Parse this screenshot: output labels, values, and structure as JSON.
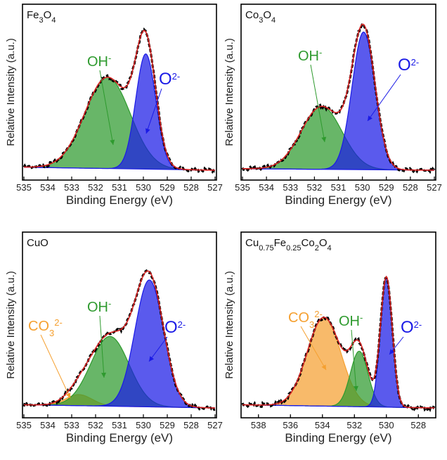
{
  "figure": {
    "panels": [
      {
        "id": "fe3o4",
        "title": {
          "base": "Fe",
          "s1": "3",
          "mid": "O",
          "s2": "4"
        },
        "xlabel": "Binding Energy (eV)",
        "ylabel": "Relative Intensity (a.u.)"
      },
      {
        "id": "co3o4",
        "title": {
          "base": "Co",
          "s1": "3",
          "mid": "O",
          "s2": "4"
        },
        "xlabel": "Binding Energy (eV)",
        "ylabel": "Relative Intensity (a.u.)"
      },
      {
        "id": "cuo",
        "title": {
          "base": "CuO"
        },
        "xlabel": "Binding Energy (eV)",
        "ylabel": "Relative Intensity (a.u.)"
      },
      {
        "id": "cufeco",
        "title": {
          "base": "Cu",
          "s1": "0.75",
          "mid": "Fe",
          "s2": "0.25",
          "mid2": "Co",
          "s3": "2",
          "end": "O",
          "s4": "4"
        },
        "xlabel": "Binding Energy (eV)",
        "ylabel": "Relative Intensity (a.u.)"
      }
    ],
    "labels": {
      "oh": {
        "base": "OH",
        "sup": "-"
      },
      "o2": {
        "base": "O",
        "sup": "2-"
      },
      "co3": {
        "base": "CO",
        "sub": "3",
        "sup": "2-"
      }
    }
  },
  "colors": {
    "oh": "#2e9a2e",
    "o2": "#1a1ae6",
    "co3": "#f5a030",
    "envelope": "#d62020",
    "data": "#000000"
  },
  "chart_data": [
    {
      "type": "line",
      "panel": "Fe3O4",
      "xlabel": "Binding Energy (eV)",
      "ylabel": "Relative Intensity (a.u.)",
      "xlim": [
        535,
        527
      ],
      "xticks": [
        535,
        534,
        533,
        532,
        531,
        530,
        529,
        528,
        527
      ],
      "ylim": [
        0,
        1.1
      ],
      "peaks": [
        {
          "name": "OH-",
          "center": 531.5,
          "height": 0.61,
          "sigma": 0.95
        },
        {
          "name": "O2-",
          "center": 529.9,
          "height": 0.77,
          "sigma": 0.42
        }
      ],
      "baseline": [
        0.02,
        0.0
      ],
      "envelope_max_at": 529.95
    },
    {
      "type": "line",
      "panel": "Co3O4",
      "xlabel": "Binding Energy (eV)",
      "ylabel": "Relative Intensity (a.u.)",
      "xlim": [
        535,
        527
      ],
      "xticks": [
        535,
        534,
        533,
        532,
        531,
        530,
        529,
        528,
        527
      ],
      "ylim": [
        0,
        1.1
      ],
      "peaks": [
        {
          "name": "OH-",
          "center": 531.7,
          "height": 0.42,
          "sigma": 0.85
        },
        {
          "name": "O2-",
          "center": 529.95,
          "height": 0.92,
          "sigma": 0.48
        }
      ],
      "baseline": [
        0.01,
        0.0
      ],
      "envelope_max_at": 530.0
    },
    {
      "type": "line",
      "panel": "CuO",
      "xlabel": "Binding Energy (eV)",
      "ylabel": "Relative Intensity (a.u.)",
      "xlim": [
        535,
        527
      ],
      "xticks": [
        535,
        534,
        533,
        532,
        531,
        530,
        529,
        528,
        527
      ],
      "ylim": [
        0,
        1.1
      ],
      "peaks": [
        {
          "name": "CO32-",
          "center": 532.7,
          "height": 0.07,
          "sigma": 0.55
        },
        {
          "name": "OH-",
          "center": 531.4,
          "height": 0.44,
          "sigma": 0.8
        },
        {
          "name": "O2-",
          "center": 529.75,
          "height": 0.8,
          "sigma": 0.6
        }
      ],
      "baseline": [
        0.02,
        0.0
      ],
      "envelope_max_at": 529.8
    },
    {
      "type": "line",
      "panel": "Cu0.75Fe0.25Co2O4",
      "xlabel": "Binding Energy (eV)",
      "ylabel": "Relative Intensity (a.u.)",
      "xlim": [
        539,
        527
      ],
      "xticks": [
        538,
        536,
        534,
        532,
        530,
        528
      ],
      "ylim": [
        0,
        1.1
      ],
      "peaks": [
        {
          "name": "CO32-",
          "center": 533.9,
          "height": 0.56,
          "sigma": 1.05
        },
        {
          "name": "OH-",
          "center": 531.7,
          "height": 0.35,
          "sigma": 0.55
        },
        {
          "name": "O2-",
          "center": 530.0,
          "height": 0.82,
          "sigma": 0.37
        }
      ],
      "baseline": [
        0.02,
        0.0
      ],
      "envelope_max_at": 530.0
    }
  ]
}
